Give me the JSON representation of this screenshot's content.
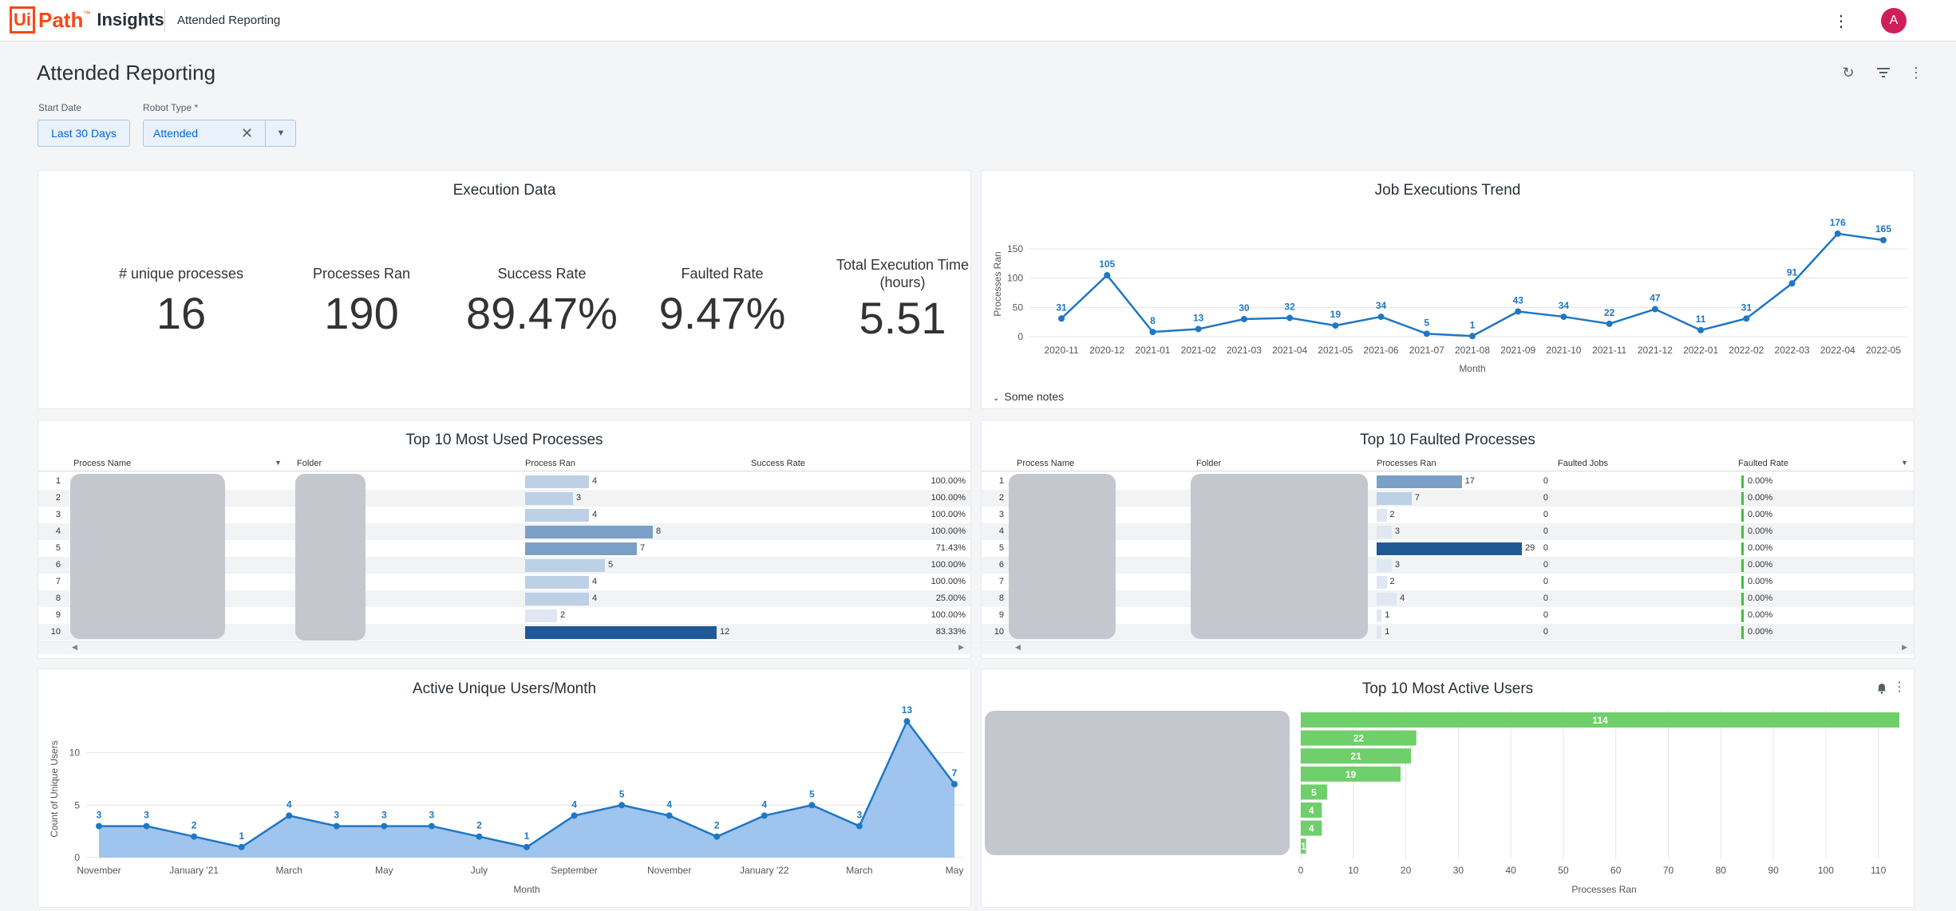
{
  "topbar": {
    "logo_ui": "Ui",
    "logo_path": "Path",
    "logo_tm": "™",
    "logo_insights": "Insights",
    "app_title": "Attended Reporting",
    "more_icon": "more-vertical-icon",
    "bell_icon": "bell-icon",
    "avatar_letter": "A"
  },
  "page": {
    "title": "Attended Reporting",
    "refresh_icon": "refresh-icon",
    "filter_icon": "filter-icon",
    "more_icon": "more-vertical-icon"
  },
  "filters": {
    "start_date_label": "Start Date",
    "start_date_value": "Last 30 Days",
    "robot_type_label": "Robot Type *",
    "robot_type_value": "Attended"
  },
  "execution_data": {
    "title": "Execution Data",
    "kpis": [
      {
        "label": "# unique processes",
        "value": "16"
      },
      {
        "label": "Processes Ran",
        "value": "190"
      },
      {
        "label": "Success Rate",
        "value": "89.47%"
      },
      {
        "label": "Faulted Rate",
        "value": "9.47%"
      },
      {
        "label": "Total Execution Time (hours)",
        "value": "5.51"
      }
    ]
  },
  "job_trend": {
    "title": "Job Executions Trend",
    "notes_label": "Some notes",
    "chart_data": {
      "type": "line",
      "x": [
        "2020-11",
        "2020-12",
        "2021-01",
        "2021-02",
        "2021-03",
        "2021-04",
        "2021-05",
        "2021-06",
        "2021-07",
        "2021-08",
        "2021-09",
        "2021-10",
        "2021-11",
        "2021-12",
        "2022-01",
        "2022-02",
        "2022-03",
        "2022-04",
        "2022-05"
      ],
      "values": [
        31,
        105,
        8,
        13,
        30,
        32,
        19,
        34,
        5,
        1,
        43,
        34,
        22,
        47,
        11,
        31,
        91,
        176,
        165
      ],
      "labels": [
        "31",
        "105",
        "8",
        "13",
        "30",
        "32",
        "19",
        "34",
        "5",
        "1",
        "43",
        "34",
        "22",
        "47",
        "11",
        "31",
        "91",
        "176",
        "165"
      ],
      "xlabel": "Month",
      "ylabel": "Processes Ran",
      "ylim": [
        0,
        180
      ],
      "yticks": [
        "0",
        "50",
        "100",
        "150"
      ],
      "ytick_values": [
        0,
        50,
        100,
        150
      ],
      "color": "#1f77c4",
      "grid": true
    }
  },
  "top_used": {
    "title": "Top 10 Most Used Processes",
    "columns": [
      "Process Name",
      "Folder",
      "Process Ran",
      "Success Rate"
    ],
    "rows": [
      {
        "n": "1",
        "ran": 4,
        "ran_label": "4",
        "rate": "100.00%"
      },
      {
        "n": "2",
        "ran": 3,
        "ran_label": "3",
        "rate": "100.00%"
      },
      {
        "n": "3",
        "ran": 4,
        "ran_label": "4",
        "rate": "100.00%"
      },
      {
        "n": "4",
        "ran": 8,
        "ran_label": "8",
        "rate": "100.00%"
      },
      {
        "n": "5",
        "ran": 7,
        "ran_label": "7",
        "rate": "71.43%"
      },
      {
        "n": "6",
        "ran": 5,
        "ran_label": "5",
        "rate": "100.00%"
      },
      {
        "n": "7",
        "ran": 4,
        "ran_label": "4",
        "rate": "100.00%"
      },
      {
        "n": "8",
        "ran": 4,
        "ran_label": "4",
        "rate": "25.00%"
      },
      {
        "n": "9",
        "ran": 2,
        "ran_label": "2",
        "rate": "100.00%"
      },
      {
        "n": "10",
        "ran": 12,
        "ran_label": "12",
        "rate": "83.33%"
      }
    ],
    "max": 12
  },
  "top_faulted": {
    "title": "Top 10 Faulted Processes",
    "columns": [
      "Process Name",
      "Folder",
      "Processes Ran",
      "Faulted Jobs",
      "Faulted Rate"
    ],
    "rows": [
      {
        "n": "1",
        "ran": 17,
        "ran_label": "17",
        "faulted": "0",
        "rate": "0.00%"
      },
      {
        "n": "2",
        "ran": 7,
        "ran_label": "7",
        "faulted": "0",
        "rate": "0.00%"
      },
      {
        "n": "3",
        "ran": 2,
        "ran_label": "2",
        "faulted": "0",
        "rate": "0.00%"
      },
      {
        "n": "4",
        "ran": 3,
        "ran_label": "3",
        "faulted": "0",
        "rate": "0.00%"
      },
      {
        "n": "5",
        "ran": 29,
        "ran_label": "29",
        "faulted": "0",
        "rate": "0.00%"
      },
      {
        "n": "6",
        "ran": 3,
        "ran_label": "3",
        "faulted": "0",
        "rate": "0.00%"
      },
      {
        "n": "7",
        "ran": 2,
        "ran_label": "2",
        "faulted": "0",
        "rate": "0.00%"
      },
      {
        "n": "8",
        "ran": 4,
        "ran_label": "4",
        "faulted": "0",
        "rate": "0.00%"
      },
      {
        "n": "9",
        "ran": 1,
        "ran_label": "1",
        "faulted": "0",
        "rate": "0.00%"
      },
      {
        "n": "10",
        "ran": 1,
        "ran_label": "1",
        "faulted": "0",
        "rate": "0.00%"
      }
    ],
    "max": 29
  },
  "active_users": {
    "title": "Active Unique Users/Month",
    "chart_data": {
      "type": "area",
      "values": [
        3,
        3,
        2,
        1,
        4,
        3,
        3,
        3,
        2,
        1,
        4,
        5,
        4,
        2,
        4,
        5,
        3,
        13,
        7
      ],
      "labels": [
        "3",
        "3",
        "2",
        "1",
        "4",
        "3",
        "3",
        "3",
        "2",
        "1",
        "4",
        "5",
        "4",
        "2",
        "4",
        "5",
        "3",
        "13",
        "7"
      ],
      "xticks": [
        "November",
        "January '21",
        "March",
        "May",
        "July",
        "September",
        "November",
        "January '22",
        "March",
        "May"
      ],
      "xtick_index": [
        0,
        2,
        4,
        6,
        8,
        10,
        12,
        14,
        16,
        18
      ],
      "xlabel": "Month",
      "ylabel": "Count of Unique Users",
      "ylim": [
        0,
        14
      ],
      "yticks": [
        "0",
        "5",
        "10"
      ],
      "ytick_values": [
        0,
        5,
        10
      ],
      "color": "#1f77c4",
      "fill": "#9fc4ee",
      "grid": true
    }
  },
  "top_users": {
    "title": "Top 10 Most Active Users",
    "bell_icon": "bell-icon",
    "more_icon": "more-vertical-icon",
    "chart_data": {
      "type": "bar",
      "orientation": "horizontal",
      "values": [
        114,
        22,
        21,
        19,
        5,
        4,
        4,
        1
      ],
      "labels": [
        "114",
        "22",
        "21",
        "19",
        "5",
        "4",
        "4",
        "1"
      ],
      "xticks": [
        "0",
        "10",
        "20",
        "30",
        "40",
        "50",
        "60",
        "70",
        "80",
        "90",
        "100",
        "110"
      ],
      "xtick_values": [
        0,
        10,
        20,
        30,
        40,
        50,
        60,
        70,
        80,
        90,
        100,
        110
      ],
      "xlim": [
        0,
        114
      ],
      "xlabel": "Processes Ran",
      "color": "#6fcf6a"
    }
  }
}
